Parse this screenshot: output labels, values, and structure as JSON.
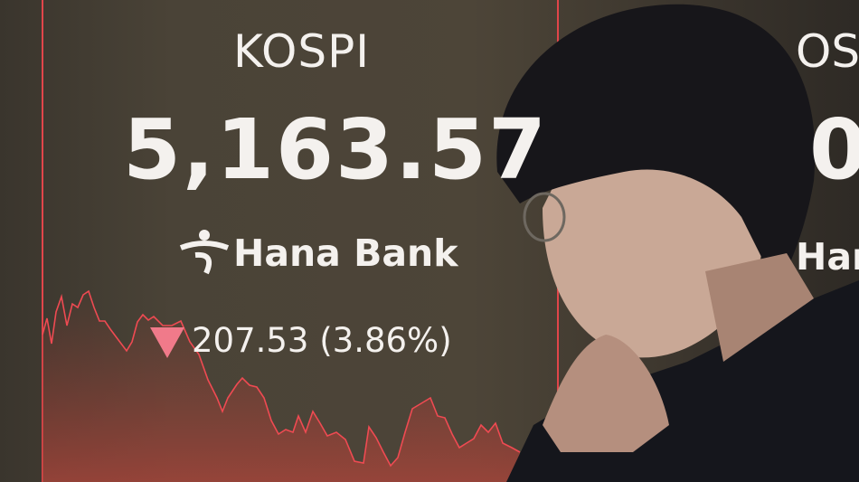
{
  "board": {
    "index_name": "KOSPI",
    "index_value": "5,163.57",
    "sponsor": "Hana Bank",
    "change": "207.53 (3.86%)",
    "direction_icon": "triangle-down-icon",
    "right_panel_fragments": [
      "OSI",
      "0",
      "Han"
    ]
  },
  "colors": {
    "line": "#ef4a52",
    "down_arrow": "#f07a8a",
    "background": "#4a4337"
  }
}
